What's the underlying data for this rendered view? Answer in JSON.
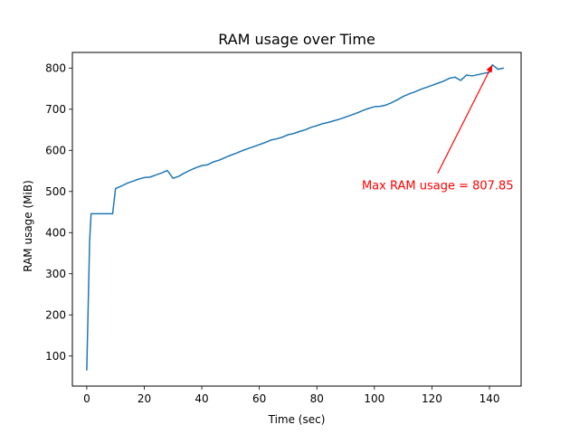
{
  "chart_data": {
    "type": "line",
    "title": "RAM usage over Time",
    "xlabel": "Time (sec)",
    "ylabel": "RAM usage (MiB)",
    "xlim": [
      -5,
      151
    ],
    "ylim": [
      27,
      838
    ],
    "xticks": [
      0,
      20,
      40,
      60,
      80,
      100,
      120,
      140
    ],
    "yticks": [
      100,
      200,
      300,
      400,
      500,
      600,
      700,
      800
    ],
    "grid": false,
    "line_color": "#1f77b4",
    "series": [
      {
        "x": [
          0,
          1,
          1.5,
          3,
          5,
          7,
          9,
          10,
          12,
          14,
          16,
          18,
          20,
          22,
          24,
          26,
          28,
          30,
          32,
          34,
          36,
          38,
          40,
          42,
          44,
          46,
          48,
          50,
          52,
          54,
          56,
          58,
          60,
          62,
          64,
          66,
          68,
          70,
          72,
          74,
          76,
          78,
          80,
          82,
          84,
          86,
          88,
          90,
          92,
          94,
          96,
          98,
          100,
          102,
          104,
          106,
          108,
          110,
          112,
          114,
          116,
          118,
          120,
          122,
          124,
          126,
          128,
          130,
          132,
          134,
          136,
          138,
          140,
          141,
          143,
          145
        ],
        "y": [
          65,
          380,
          446,
          446,
          446,
          446,
          446,
          507,
          513,
          520,
          525,
          530,
          534,
          535,
          540,
          545,
          551,
          532,
          537,
          545,
          552,
          558,
          563,
          565,
          572,
          576,
          582,
          588,
          593,
          599,
          604,
          609,
          614,
          619,
          625,
          628,
          632,
          638,
          641,
          646,
          650,
          656,
          660,
          665,
          668,
          672,
          676,
          681,
          686,
          691,
          697,
          702,
          706,
          707,
          710,
          716,
          723,
          731,
          737,
          742,
          748,
          753,
          758,
          763,
          768,
          775,
          778,
          770,
          783,
          781,
          784,
          787,
          790,
          807.85,
          797,
          800
        ]
      }
    ],
    "annotation": {
      "text": "Max RAM usage = 807.85",
      "color": "#ff0000",
      "point": [
        141,
        807.85
      ],
      "text_anchor_point": [
        122,
        518
      ]
    }
  }
}
